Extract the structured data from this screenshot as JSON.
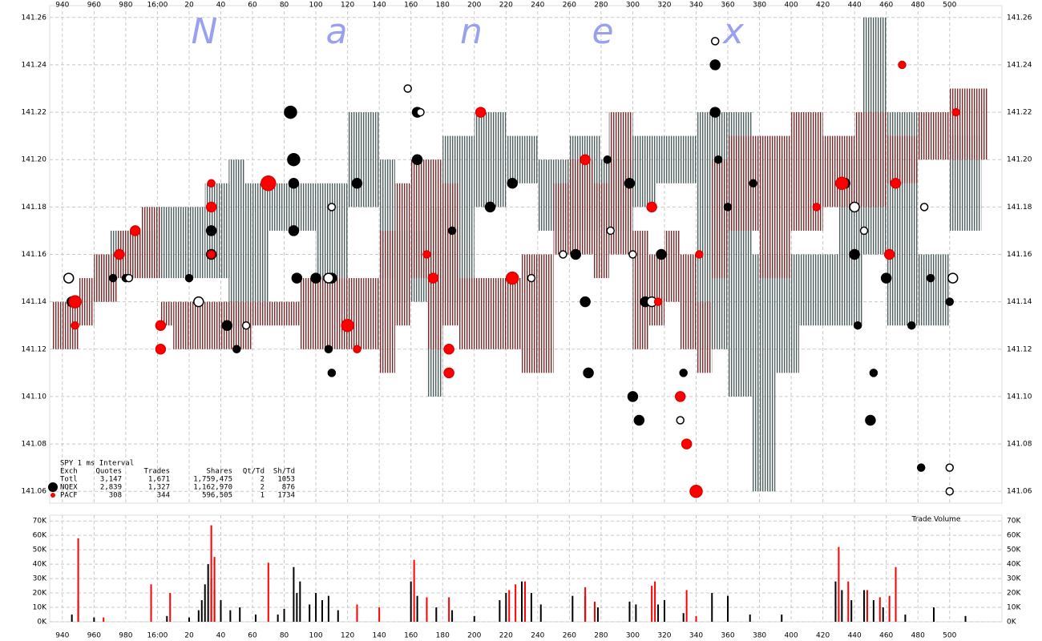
{
  "chart_data": [
    {
      "type": "scatter",
      "watermark": [
        "N",
        "a",
        "n",
        "e",
        "x"
      ],
      "xlim": [
        -68,
        533
      ],
      "xticks": [
        {
          "value": -60,
          "label": "940"
        },
        {
          "value": -40,
          "label": "960"
        },
        {
          "value": -20,
          "label": "980"
        },
        {
          "value": 0,
          "label": "16:00"
        },
        20,
        40,
        60,
        80,
        100,
        120,
        140,
        160,
        180,
        200,
        220,
        240,
        260,
        280,
        300,
        320,
        340,
        360,
        380,
        400,
        420,
        440,
        460,
        480,
        500
      ],
      "ylim": [
        141.055,
        141.265
      ],
      "yticks": [
        141.06,
        141.08,
        {
          "value": 141.1,
          "label": "141.10"
        },
        141.12,
        141.14,
        141.16,
        141.18,
        {
          "value": 141.2,
          "label": "141.20"
        },
        141.22,
        141.24,
        141.26
      ],
      "grid": true,
      "bands": [
        {
          "color": "#4f6060",
          "x": [
            -40,
            -30,
            0,
            30,
            45,
            55,
            70,
            100,
            120,
            140,
            150,
            170,
            180,
            200,
            220,
            240,
            260,
            280,
            300,
            315,
            340,
            360,
            375,
            390,
            405,
            430,
            445,
            460,
            480,
            500
          ],
          "low": [
            141.14,
            141.15,
            141.15,
            141.15,
            141.13,
            141.14,
            141.17,
            141.15,
            141.18,
            141.15,
            141.14,
            141.1,
            141.14,
            141.18,
            141.19,
            141.17,
            141.17,
            141.17,
            141.18,
            141.19,
            141.12,
            141.1,
            141.06,
            141.11,
            141.13,
            141.13,
            141.16,
            141.13,
            141.13,
            141.17
          ],
          "high": [
            141.16,
            141.17,
            141.18,
            141.19,
            141.2,
            141.19,
            141.19,
            141.19,
            141.22,
            141.2,
            141.17,
            141.18,
            141.21,
            141.22,
            141.21,
            141.2,
            141.21,
            141.2,
            141.21,
            141.21,
            141.22,
            141.22,
            141.16,
            141.16,
            141.16,
            141.2,
            141.26,
            141.22,
            141.16,
            141.21
          ]
        },
        {
          "color": "#7b2a2a",
          "x": [
            -66,
            -50,
            -40,
            -25,
            -10,
            2,
            10,
            40,
            60,
            90,
            110,
            130,
            140,
            150,
            160,
            170,
            180,
            190,
            210,
            230,
            250,
            260,
            275,
            285,
            300,
            310,
            320,
            330,
            340,
            350,
            360,
            380,
            400,
            420,
            440,
            460,
            480,
            500,
            512
          ],
          "low": [
            141.12,
            141.13,
            141.14,
            141.15,
            141.15,
            141.13,
            141.12,
            141.12,
            141.13,
            141.12,
            141.12,
            141.12,
            141.11,
            141.13,
            141.15,
            141.12,
            141.13,
            141.12,
            141.12,
            141.11,
            141.16,
            141.16,
            141.15,
            141.16,
            141.12,
            141.13,
            141.14,
            141.12,
            141.11,
            141.15,
            141.17,
            141.15,
            141.17,
            141.18,
            141.18,
            141.19,
            141.2,
            141.2,
            141.2
          ],
          "high": [
            141.14,
            141.15,
            141.16,
            141.17,
            141.18,
            141.14,
            141.14,
            141.14,
            141.14,
            141.15,
            141.15,
            141.15,
            141.17,
            141.19,
            141.2,
            141.2,
            141.19,
            141.15,
            141.15,
            141.16,
            141.19,
            141.2,
            141.19,
            141.22,
            141.17,
            141.16,
            141.17,
            141.16,
            141.14,
            141.2,
            141.21,
            141.21,
            141.22,
            141.21,
            141.22,
            141.21,
            141.22,
            141.23,
            141.23
          ]
        }
      ],
      "series": [
        {
          "color": "#000000",
          "edgecolor": "#000000",
          "x": [
            -54,
            -28,
            -20,
            20,
            34,
            34,
            44,
            50,
            84,
            86,
            86,
            86,
            88,
            100,
            110,
            108,
            110,
            126,
            164,
            164,
            186,
            210,
            224,
            264,
            270,
            272,
            284,
            298,
            300,
            304,
            308,
            318,
            332,
            352,
            352,
            354,
            360,
            376,
            434,
            440,
            442,
            450,
            452,
            460,
            476,
            482,
            488,
            500
          ],
          "y": [
            141.14,
            141.15,
            141.15,
            141.15,
            141.16,
            141.17,
            141.13,
            141.12,
            141.22,
            141.2,
            141.19,
            141.17,
            141.15,
            141.15,
            141.15,
            141.12,
            141.11,
            141.19,
            141.22,
            141.2,
            141.17,
            141.18,
            141.19,
            141.16,
            141.14,
            141.11,
            141.2,
            141.19,
            141.1,
            141.09,
            141.14,
            141.16,
            141.11,
            141.24,
            141.22,
            141.2,
            141.18,
            141.19,
            141.19,
            141.16,
            141.13,
            141.09,
            141.11,
            141.15,
            141.13,
            141.07,
            141.15,
            141.14
          ],
          "sizes": [
            3,
            2,
            2,
            2,
            3,
            3,
            3,
            2,
            4,
            4,
            3,
            3,
            3,
            3,
            3,
            2,
            2,
            3,
            3,
            3,
            2,
            3,
            3,
            3,
            3,
            3,
            2,
            3,
            3,
            3,
            3,
            3,
            2,
            3,
            3,
            2,
            2,
            2,
            3,
            3,
            2,
            3,
            2,
            3,
            2,
            2,
            2,
            2
          ]
        },
        {
          "color": "#ffffff",
          "edgecolor": "#000000",
          "x": [
            -56,
            -18,
            26,
            56,
            108,
            110,
            158,
            166,
            236,
            256,
            286,
            300,
            312,
            330,
            352,
            440,
            446,
            484,
            500,
            500,
            502
          ],
          "y": [
            141.15,
            141.15,
            141.14,
            141.13,
            141.15,
            141.18,
            141.23,
            141.22,
            141.15,
            141.16,
            141.17,
            141.16,
            141.14,
            141.09,
            141.25,
            141.18,
            141.17,
            141.18,
            141.06,
            141.07,
            141.15
          ],
          "sizes": [
            3,
            2,
            3,
            2,
            3,
            2,
            2,
            2,
            2,
            2,
            2,
            2,
            3,
            2,
            2,
            3,
            2,
            2,
            2,
            2,
            3
          ]
        },
        {
          "color": "#ff0000",
          "edgecolor": "#dd0000",
          "x": [
            -52,
            -52,
            -24,
            -14,
            2,
            2,
            34,
            34,
            34,
            70,
            120,
            126,
            170,
            174,
            184,
            184,
            204,
            224,
            270,
            312,
            316,
            330,
            334,
            340,
            342,
            416,
            432,
            462,
            466,
            470,
            504
          ],
          "y": [
            141.14,
            141.13,
            141.16,
            141.17,
            141.13,
            141.12,
            141.19,
            141.18,
            141.16,
            141.19,
            141.13,
            141.12,
            141.16,
            141.15,
            141.12,
            141.11,
            141.22,
            141.15,
            141.2,
            141.18,
            141.14,
            141.1,
            141.08,
            141.06,
            141.16,
            141.18,
            141.19,
            141.16,
            141.19,
            141.24,
            141.22
          ],
          "sizes": [
            4,
            2,
            3,
            3,
            3,
            3,
            2,
            3,
            2,
            5,
            4,
            2,
            2,
            3,
            3,
            3,
            3,
            4,
            3,
            3,
            2,
            3,
            3,
            4,
            2,
            2,
            4,
            3,
            3,
            2,
            2
          ]
        }
      ],
      "stats": {
        "title": "SPY 1 ms Interval",
        "columns": [
          "Exch",
          "Quotes",
          "Trades",
          "Shares",
          "Qt/Td",
          "Sh/Td"
        ],
        "rows": [
          [
            "Totl",
            "3,147",
            "1,671",
            "1,759,475",
            "2",
            "1053"
          ],
          [
            "NQEX",
            "2,839",
            "1,327",
            "1,162,970",
            "2",
            "876"
          ],
          [
            "PACF",
            "308",
            "344",
            "596,505",
            "1",
            "1734"
          ]
        ]
      }
    },
    {
      "type": "bar",
      "title": "Trade Volume",
      "xlim": [
        -68,
        533
      ],
      "xticks": [
        {
          "value": -60,
          "label": "940"
        },
        {
          "value": -40,
          "label": "960"
        },
        {
          "value": -20,
          "label": "980"
        },
        {
          "value": 0,
          "label": "16:00"
        },
        20,
        40,
        60,
        80,
        100,
        120,
        140,
        160,
        180,
        200,
        220,
        240,
        260,
        280,
        300,
        320,
        340,
        360,
        380,
        400,
        420,
        440,
        460,
        480,
        500
      ],
      "ylim": [
        0,
        74000
      ],
      "yticks": [
        {
          "value": 0,
          "label": "0K"
        },
        {
          "value": 10000,
          "label": "10K"
        },
        {
          "value": 20000,
          "label": "20K"
        },
        {
          "value": 30000,
          "label": "30K"
        },
        {
          "value": 40000,
          "label": "40K"
        },
        {
          "value": 50000,
          "label": "50K"
        },
        {
          "value": 60000,
          "label": "60K"
        },
        {
          "value": 70000,
          "label": "70K"
        }
      ],
      "grid": true,
      "series": [
        {
          "color": "#000000",
          "x": [
            -54,
            -50,
            -40,
            6,
            20,
            26,
            28,
            30,
            32,
            34,
            36,
            40,
            46,
            52,
            62,
            76,
            80,
            86,
            88,
            90,
            96,
            100,
            104,
            108,
            114,
            126,
            160,
            164,
            176,
            186,
            200,
            216,
            220,
            230,
            236,
            242,
            262,
            270,
            278,
            298,
            302,
            316,
            320,
            332,
            350,
            360,
            374,
            394,
            428,
            432,
            438,
            446,
            452,
            458,
            472,
            490,
            510
          ],
          "values": [
            5000,
            15000,
            3000,
            4000,
            3000,
            8000,
            15000,
            26000,
            40000,
            30000,
            22000,
            15000,
            8000,
            10000,
            5000,
            5000,
            9000,
            38000,
            20000,
            28000,
            12000,
            20000,
            15000,
            18000,
            8000,
            6000,
            28000,
            18000,
            10000,
            8000,
            4000,
            15000,
            20000,
            28000,
            20000,
            12000,
            18000,
            18000,
            10000,
            14000,
            12000,
            12000,
            15000,
            6000,
            20000,
            18000,
            5000,
            5000,
            28000,
            22000,
            15000,
            22000,
            15000,
            10000,
            5000,
            10000,
            4000
          ]
        },
        {
          "color": "#ff0000",
          "x": [
            -50,
            -34,
            -4,
            8,
            34,
            36,
            70,
            126,
            140,
            162,
            170,
            184,
            222,
            226,
            232,
            270,
            276,
            312,
            314,
            334,
            340,
            430,
            436,
            448,
            456,
            462,
            466
          ],
          "values": [
            58000,
            3000,
            26000,
            20000,
            67000,
            45000,
            41000,
            12000,
            10000,
            43000,
            17000,
            17000,
            22000,
            26000,
            28000,
            24000,
            14000,
            25000,
            28000,
            22000,
            4000,
            52000,
            28000,
            22000,
            17000,
            18000,
            38000
          ]
        }
      ]
    }
  ]
}
